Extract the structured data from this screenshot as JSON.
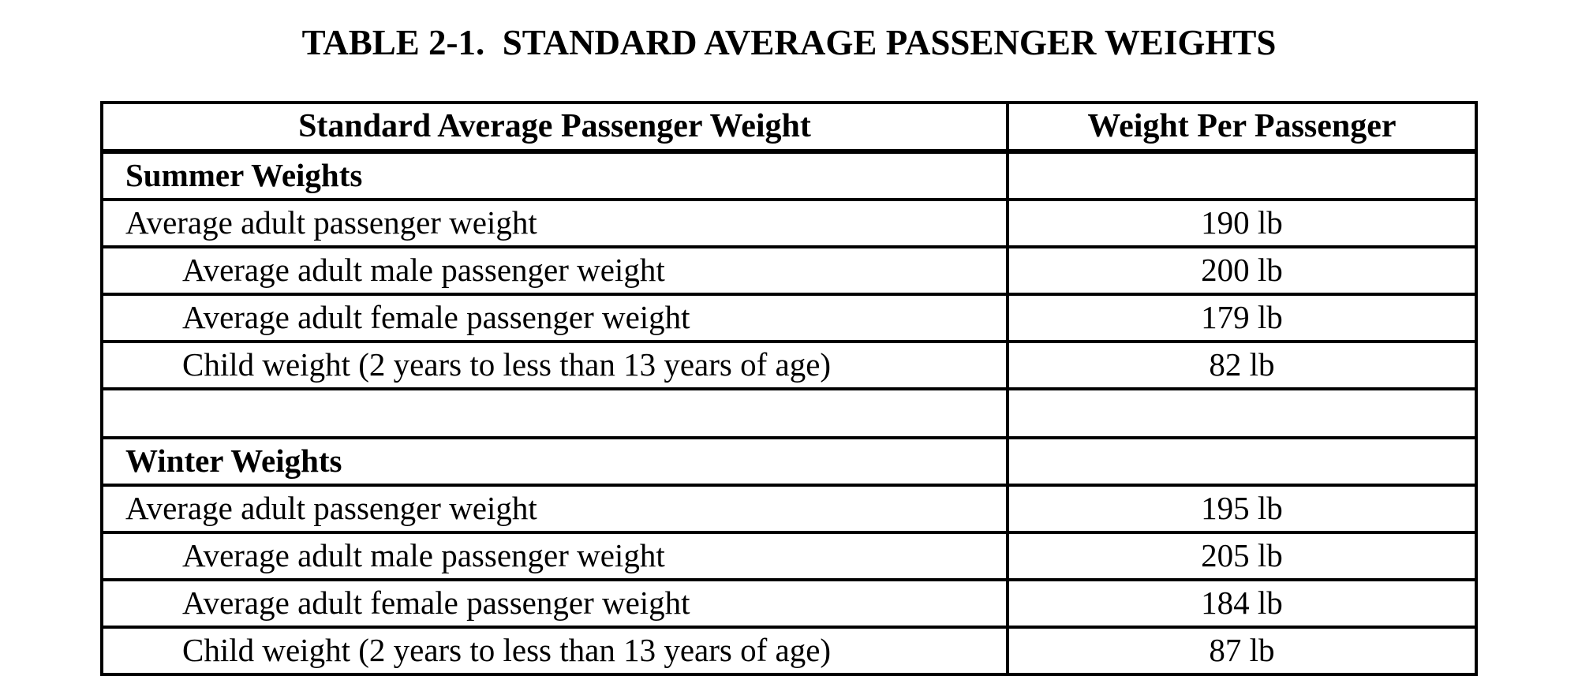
{
  "title": "TABLE 2-1.  STANDARD AVERAGE PASSENGER WEIGHTS",
  "table": {
    "columns": [
      "Standard Average Passenger Weight",
      "Weight Per Passenger"
    ],
    "rows": [
      {
        "label": "Summer Weights",
        "value": ""
      },
      {
        "label": "Average adult passenger weight",
        "value": "190 lb"
      },
      {
        "label": "Average adult male passenger weight",
        "value": "200 lb"
      },
      {
        "label": "Average adult female passenger weight",
        "value": "179 lb"
      },
      {
        "label": "Child weight (2 years to less than 13 years of age)",
        "value": "82 lb"
      },
      {
        "label": "",
        "value": ""
      },
      {
        "label": "Winter Weights",
        "value": ""
      },
      {
        "label": "Average adult passenger weight",
        "value": "195 lb"
      },
      {
        "label": "Average adult male passenger weight",
        "value": "205 lb"
      },
      {
        "label": "Average adult female passenger weight",
        "value": "184 lb"
      },
      {
        "label": "Child weight (2 years to less than 13 years of age)",
        "value": "87 lb"
      }
    ]
  }
}
